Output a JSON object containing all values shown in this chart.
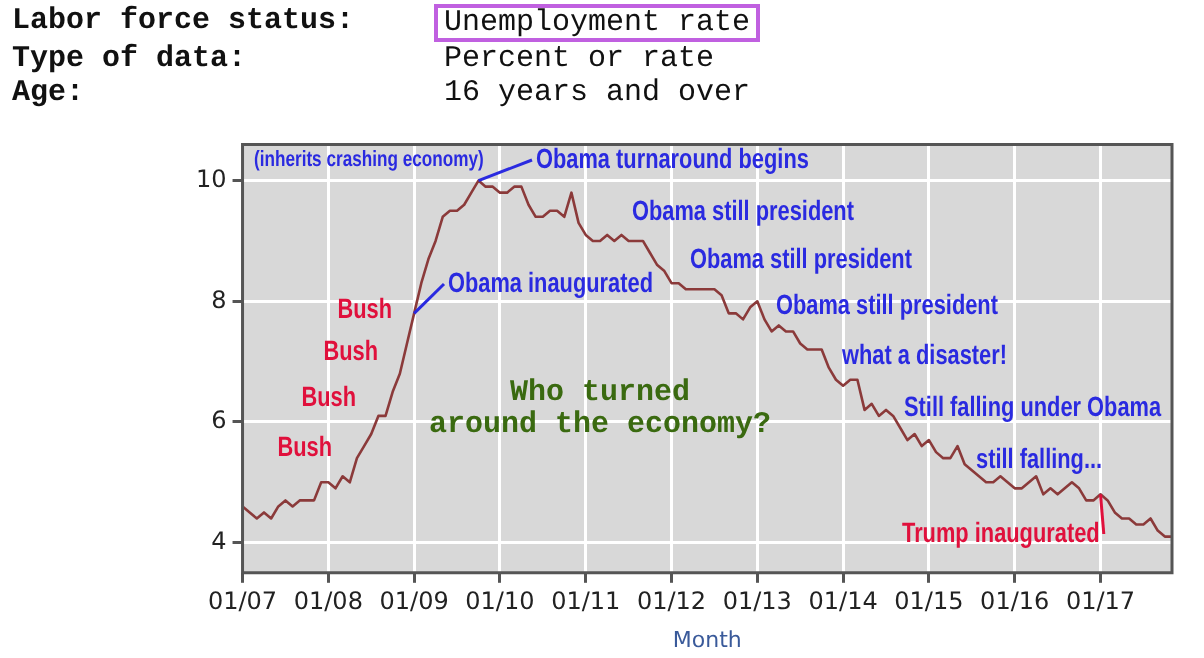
{
  "chart_data": {
    "type": "line",
    "title": "Labor force status: Unemployment rate",
    "subtitle": "Type of data: Percent or rate\nAge: 16 years and over",
    "xlabel": "Month",
    "x": [
      "2007-01",
      "2007-02",
      "2007-03",
      "2007-04",
      "2007-05",
      "2007-06",
      "2007-07",
      "2007-08",
      "2007-09",
      "2007-10",
      "2007-11",
      "2007-12",
      "2008-01",
      "2008-02",
      "2008-03",
      "2008-04",
      "2008-05",
      "2008-06",
      "2008-07",
      "2008-08",
      "2008-09",
      "2008-10",
      "2008-11",
      "2008-12",
      "2009-01",
      "2009-02",
      "2009-03",
      "2009-04",
      "2009-05",
      "2009-06",
      "2009-07",
      "2009-08",
      "2009-09",
      "2009-10",
      "2009-11",
      "2009-12",
      "2010-01",
      "2010-02",
      "2010-03",
      "2010-04",
      "2010-05",
      "2010-06",
      "2010-07",
      "2010-08",
      "2010-09",
      "2010-10",
      "2010-11",
      "2010-12",
      "2011-01",
      "2011-02",
      "2011-03",
      "2011-04",
      "2011-05",
      "2011-06",
      "2011-07",
      "2011-08",
      "2011-09",
      "2011-10",
      "2011-11",
      "2011-12",
      "2012-01",
      "2012-02",
      "2012-03",
      "2012-04",
      "2012-05",
      "2012-06",
      "2012-07",
      "2012-08",
      "2012-09",
      "2012-10",
      "2012-11",
      "2012-12",
      "2013-01",
      "2013-02",
      "2013-03",
      "2013-04",
      "2013-05",
      "2013-06",
      "2013-07",
      "2013-08",
      "2013-09",
      "2013-10",
      "2013-11",
      "2013-12",
      "2014-01",
      "2014-02",
      "2014-03",
      "2014-04",
      "2014-05",
      "2014-06",
      "2014-07",
      "2014-08",
      "2014-09",
      "2014-10",
      "2014-11",
      "2014-12",
      "2015-01",
      "2015-02",
      "2015-03",
      "2015-04",
      "2015-05",
      "2015-06",
      "2015-07",
      "2015-08",
      "2015-09",
      "2015-10",
      "2015-11",
      "2015-12",
      "2016-01",
      "2016-02",
      "2016-03",
      "2016-04",
      "2016-05",
      "2016-06",
      "2016-07",
      "2016-08",
      "2016-09",
      "2016-10",
      "2016-11",
      "2016-12",
      "2017-01",
      "2017-02",
      "2017-03",
      "2017-04",
      "2017-05",
      "2017-06",
      "2017-07",
      "2017-08",
      "2017-09",
      "2017-10",
      "2017-11"
    ],
    "series": [
      {
        "color": "#8b3a3a",
        "values": [
          4.6,
          4.5,
          4.4,
          4.5,
          4.4,
          4.6,
          4.7,
          4.6,
          4.7,
          4.7,
          4.7,
          5.0,
          5.0,
          4.9,
          5.1,
          5.0,
          5.4,
          5.6,
          5.8,
          6.1,
          6.1,
          6.5,
          6.8,
          7.3,
          7.8,
          8.3,
          8.7,
          9.0,
          9.4,
          9.5,
          9.5,
          9.6,
          9.8,
          10.0,
          9.9,
          9.9,
          9.8,
          9.8,
          9.9,
          9.9,
          9.6,
          9.4,
          9.4,
          9.5,
          9.5,
          9.4,
          9.8,
          9.3,
          9.1,
          9.0,
          9.0,
          9.1,
          9.0,
          9.1,
          9.0,
          9.0,
          9.0,
          8.8,
          8.6,
          8.5,
          8.3,
          8.3,
          8.2,
          8.2,
          8.2,
          8.2,
          8.2,
          8.1,
          7.8,
          7.8,
          7.7,
          7.9,
          8.0,
          7.7,
          7.5,
          7.6,
          7.5,
          7.5,
          7.3,
          7.2,
          7.2,
          7.2,
          6.9,
          6.7,
          6.6,
          6.7,
          6.7,
          6.2,
          6.3,
          6.1,
          6.2,
          6.1,
          5.9,
          5.7,
          5.8,
          5.6,
          5.7,
          5.5,
          5.4,
          5.4,
          5.6,
          5.3,
          5.2,
          5.1,
          5.0,
          5.0,
          5.1,
          5.0,
          4.9,
          4.9,
          5.0,
          5.1,
          4.8,
          4.9,
          4.8,
          4.9,
          5.0,
          4.9,
          4.7,
          4.7,
          4.8,
          4.7,
          4.5,
          4.4,
          4.4,
          4.3,
          4.3,
          4.4,
          4.2,
          4.1,
          4.1
        ]
      }
    ],
    "xlim": [
      "2007-01",
      "2017-11"
    ],
    "xticks": [
      {
        "value": "2007-01",
        "label": "01/07"
      },
      {
        "value": "2008-01",
        "label": "01/08"
      },
      {
        "value": "2009-01",
        "label": "01/09"
      },
      {
        "value": "2010-01",
        "label": "01/10"
      },
      {
        "value": "2011-01",
        "label": "01/11"
      },
      {
        "value": "2012-01",
        "label": "01/12"
      },
      {
        "value": "2013-01",
        "label": "01/13"
      },
      {
        "value": "2014-01",
        "label": "01/14"
      },
      {
        "value": "2015-01",
        "label": "01/15"
      },
      {
        "value": "2016-01",
        "label": "01/16"
      },
      {
        "value": "2017-01",
        "label": "01/17"
      }
    ],
    "ylim": [
      3.5,
      10.6
    ],
    "yticks": [
      4,
      6,
      8,
      10
    ],
    "grid": true,
    "legend": false,
    "marker": "none",
    "line_style": "solid",
    "annotations": [
      "(inherits crashing economy)",
      {
        "text": "Obama turnaround begins",
        "x": "2009-10",
        "y": 10.0
      },
      "Obama still president",
      "Obama still president",
      "Obama still president",
      "what a disaster!",
      "Still falling under Obama",
      "still falling...",
      {
        "text": "Trump inaugurated",
        "x": "2017-01",
        "y": 4.8
      },
      {
        "text": "Obama inaugurated",
        "x": "2009-01",
        "y": 7.8
      },
      "Bush",
      "Bush",
      "Bush",
      "Bush",
      "Who turned\naround the economy?"
    ]
  }
}
